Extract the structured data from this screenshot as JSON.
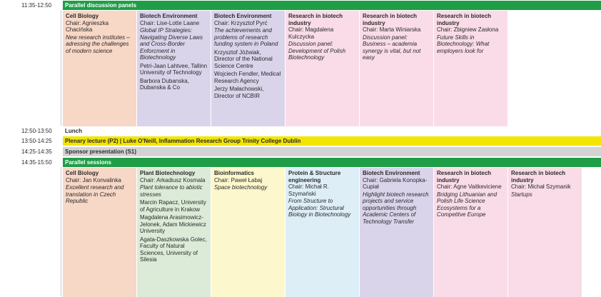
{
  "schedule": {
    "rows": [
      {
        "time": "11:35-12:50",
        "label": "Parallel discussion panels",
        "color": "#1f9e47",
        "cells": [
          {
            "title": "Cell Biology",
            "chair": "Chair: Agnieszka Chacińska",
            "color": "#f7d7c6",
            "topic": "New research institutes – adressing the challenges of modern science",
            "people": []
          },
          {
            "title": "Biotech Environment",
            "chair": "Chair: Lise-Lotte Laane",
            "color": "#dad4eb",
            "topic": "Global IP Strategies: Navigating Diverse Laws and Cross-Border Enforcment in Biotechnology",
            "people": [
              "Petri-Jaan Lahtvee, Tallinn University of Technology",
              "Barbora Dubanska, Dubanska & Co"
            ]
          },
          {
            "title": "Biotech Environment",
            "chair": "Chair: Krzysztof Pyrć",
            "color": "#dad4eb",
            "topic": "The achievements and problems of research funding system in Poland",
            "people": [
              "Krzysztof Jóźwiak, Director of the National Science Centre",
              "Wojciech Fendler, Medical Research Agency",
              "Jerzy Małachowski, Director of NCBIR"
            ]
          },
          {
            "title": "Research in biotech industry",
            "chair": "Chair: Magdalena Kulczycka",
            "color": "#f9dce7",
            "topic": "Discussion panel: Development of Polish Biotechnology",
            "people": []
          },
          {
            "title": "Research in biotech industry",
            "chair": "Chair: Marta Winiarska",
            "color": "#f9dce7",
            "topic": "Discussion panel: Business – academia synergy is vital, but not easy",
            "people": []
          },
          {
            "title": "Research in biotech industry",
            "chair": "Chair: Zbigniew Zasłona",
            "color": "#f9dce7",
            "topic": "Future Skills in Biotechnology: What employers look for",
            "people": []
          }
        ]
      },
      {
        "time": "12:50-13:50",
        "label": "Lunch",
        "color": "#ffffff"
      },
      {
        "time": "13:50-14:25",
        "label": "Plenary lecture (P2) | Luke O'Neill, Inflammation Research Group Trinity College Dublin",
        "color": "#f2e500"
      },
      {
        "time": "14:25-14:35",
        "label": "Sponsor presentation (S1)",
        "color": "#d3d3d3"
      },
      {
        "time": "14:35-15:50",
        "label": "Parallel sessions",
        "color": "#1f9e47",
        "cells": [
          {
            "title": "Cell Biology",
            "chair": "Chair: Jan Konvalinka",
            "color": "#f7d7c6",
            "topic": "Excellent research and translation in Czech Republic",
            "people": []
          },
          {
            "title": "Plant Biotechnology",
            "chair": "Chair: Arkadiusz Kosmala",
            "color": "#dcebd8",
            "topic": "Plant tolerance to abiotic stresses",
            "people": [
              "Marcin Rapacz, University of Agriculture in Krakow",
              "Magdalena Arasimowicz-Jelonek, Adam Mickiewicz University",
              "Agata-Daszkowska Golec, Faculty of Natural Sciences, University of Silesia"
            ]
          },
          {
            "title": "Bioinformatics",
            "chair": "Chair: Paweł Łabaj",
            "color": "#fdf7cd",
            "topic": "Space biotechnology",
            "people": []
          },
          {
            "title": "Protein & Structure engineering",
            "chair": "Chair: Michał R. Szymański",
            "color": "#ddeef7",
            "topic": "From Structure to Application: Structural Biology in Biotechnology",
            "people": []
          },
          {
            "title": "Biotech Environment",
            "chair": "Chair: Gabriela Konopka-Cupiał",
            "color": "#dad4eb",
            "topic": "Highlight biotech research projects and service opportunities through Academic Centers of Technology Transfer",
            "people": []
          },
          {
            "title": "Research in biotech industry",
            "chair": "Chair: Agne Vaitkeviciene",
            "color": "#f9dce7",
            "topic": "Bridging Lithuanian and Polish Life Science Ecosystems for a Competitve Europe",
            "people": []
          },
          {
            "title": "Research in biotech industry",
            "chair": "Chair: Michał Szymanik",
            "color": "#f9dce7",
            "topic": "Startups",
            "people": []
          }
        ]
      }
    ]
  }
}
